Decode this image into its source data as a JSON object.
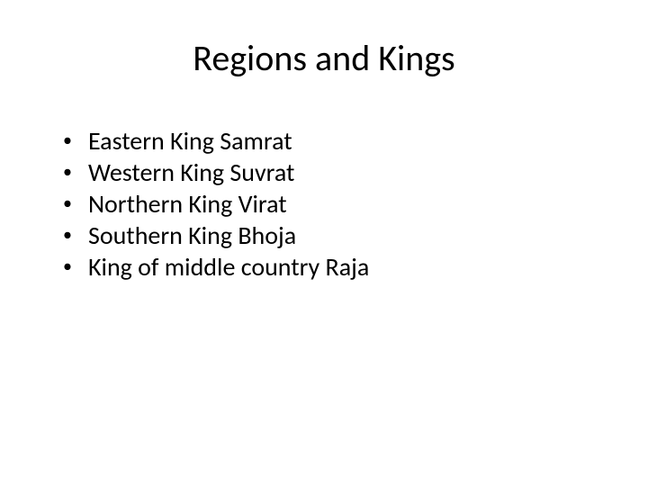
{
  "slide": {
    "title": "Regions and Kings",
    "title_fontsize": 40,
    "title_color": "#000000",
    "background_color": "#ffffff",
    "bullets": [
      {
        "text": "Eastern King Samrat"
      },
      {
        "text": "Western King Suvrat"
      },
      {
        "text": "Northern King Virat"
      },
      {
        "text": "Southern King Bhoja"
      },
      {
        "text": "King of middle country Raja"
      }
    ],
    "bullet_fontsize": 28,
    "bullet_color": "#000000",
    "bullet_marker": "•"
  }
}
